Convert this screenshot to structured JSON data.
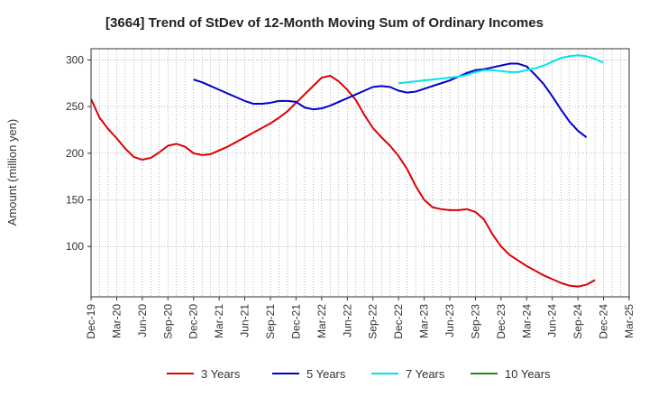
{
  "chart_data": {
    "type": "line",
    "title": "[3664]  Trend of StDev of 12-Month Moving Sum of Ordinary Incomes",
    "xlabel": "",
    "ylabel": "Amount (million yen)",
    "ylim": [
      46,
      312
    ],
    "yticks": [
      100,
      150,
      200,
      250,
      300
    ],
    "x_tick_labels": [
      "Dec-19",
      "Mar-20",
      "Jun-20",
      "Sep-20",
      "Dec-20",
      "Mar-21",
      "Jun-21",
      "Sep-21",
      "Dec-21",
      "Mar-22",
      "Jun-22",
      "Sep-22",
      "Dec-22",
      "Mar-23",
      "Jun-23",
      "Sep-23",
      "Dec-23",
      "Mar-24",
      "Jun-24",
      "Sep-24",
      "Dec-24",
      "Mar-25"
    ],
    "grid": true,
    "legend_position": "bottom",
    "series": [
      {
        "name": "3 Years",
        "color": "#dd0000",
        "start_index": 0,
        "values": [
          258,
          238,
          226,
          216,
          205,
          196,
          193,
          195,
          201,
          208,
          210,
          207,
          200,
          198,
          199,
          203,
          207,
          212,
          217,
          222,
          227,
          232,
          238,
          245,
          254,
          263,
          272,
          281,
          283,
          277,
          268,
          257,
          241,
          227,
          217,
          208,
          197,
          183,
          165,
          150,
          142,
          140,
          139,
          139,
          140,
          137,
          129,
          113,
          100,
          91,
          85,
          79,
          74,
          69,
          65,
          61,
          58,
          57,
          59,
          64
        ],
        "end_value_note": "Dec-24"
      },
      {
        "name": "5 Years",
        "color": "#0000cc",
        "start_index": 12,
        "values": [
          279,
          276,
          272,
          268,
          264,
          260,
          256,
          253,
          253,
          254,
          256,
          256,
          255,
          249,
          247,
          248,
          251,
          255,
          259,
          263,
          267,
          271,
          272,
          271,
          267,
          265,
          266,
          269,
          272,
          275,
          278,
          282,
          286,
          289,
          290,
          292,
          294,
          296,
          296,
          293,
          284,
          274,
          261,
          247,
          234,
          224,
          217
        ]
      },
      {
        "name": "7 Years",
        "color": "#00e5e5",
        "start_index": 36,
        "values": [
          275,
          276,
          277,
          278,
          279,
          280,
          281,
          282,
          284,
          287,
          289,
          289,
          288,
          287,
          287,
          289,
          291,
          294,
          298,
          302,
          304,
          305,
          304,
          301,
          297
        ]
      },
      {
        "name": "10 Years",
        "color": "#228822",
        "start_index": 0,
        "values": []
      }
    ]
  }
}
